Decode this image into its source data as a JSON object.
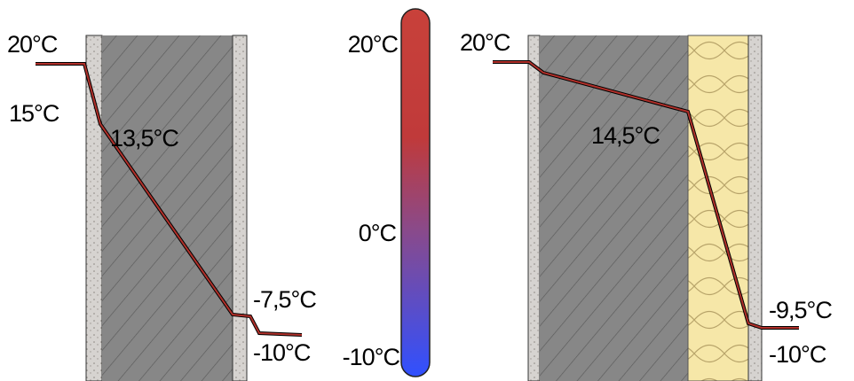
{
  "left_wall": {
    "labels": [
      "20°C",
      "15°C",
      "13,5°C",
      "-7,5°C",
      "-10°C"
    ]
  },
  "thermometer": {
    "labels": [
      "20°C",
      "0°C",
      "-10°C"
    ]
  },
  "right_wall": {
    "labels": [
      "20°C",
      "14,5°C",
      "-9,5°C",
      "-10°C"
    ]
  }
}
